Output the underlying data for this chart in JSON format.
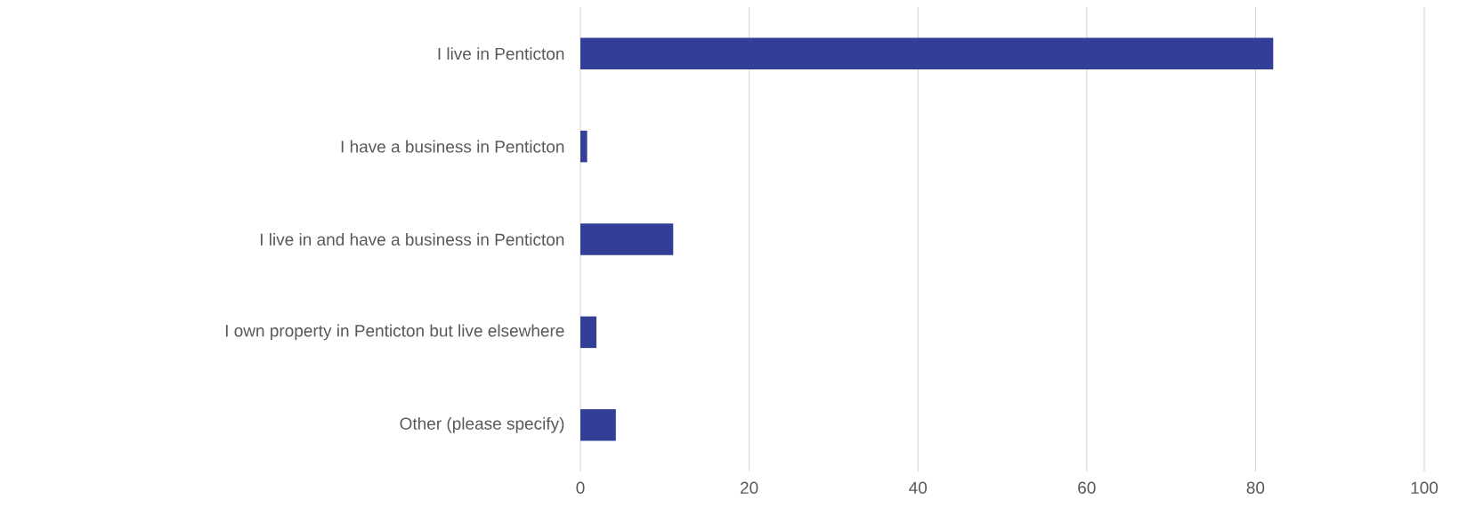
{
  "chart_data": {
    "type": "bar",
    "orientation": "horizontal",
    "categories": [
      "I live in Penticton",
      "I have a business in Penticton",
      "I live in and have a business in Penticton",
      "I own property in Penticton but live elsewhere",
      "Other (please specify)"
    ],
    "values": [
      82.1,
      0.8,
      11.0,
      1.9,
      4.2
    ],
    "color": "#333f97",
    "xlim": [
      0,
      100
    ],
    "xticks": [
      0,
      20,
      40,
      60,
      80,
      100
    ],
    "grid": "x"
  }
}
